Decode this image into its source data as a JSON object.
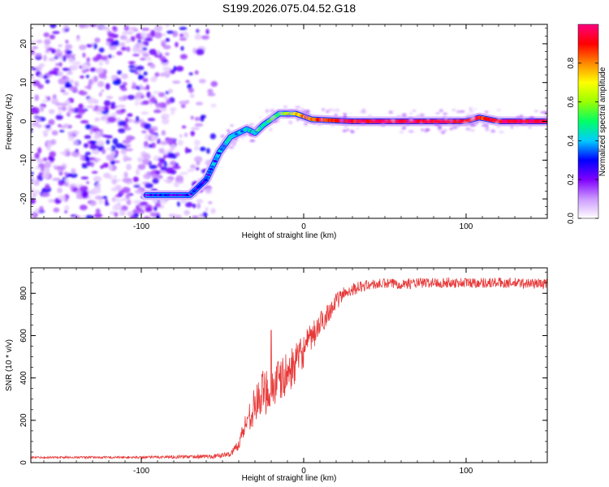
{
  "title": "S199.2026.075.04.52.G18",
  "chart_data": [
    {
      "type": "heatmap",
      "name": "spectrogram",
      "xlabel": "Height of straight line (km)",
      "ylabel": "Frequency (Hz)",
      "xlim": [
        -168,
        150
      ],
      "ylim": [
        -25,
        25
      ],
      "xticks": [
        -100,
        0,
        100
      ],
      "yticks": [
        -20,
        -10,
        0,
        10,
        20
      ],
      "colorbar": {
        "label": "Normalized spectral amplitude",
        "range": [
          0,
          1
        ],
        "ticks": [
          0.0,
          0.2,
          0.4,
          0.6,
          0.8
        ],
        "colors": [
          "#ffffff",
          "#cc99ff",
          "#8000ff",
          "#0000ff",
          "#00ccff",
          "#00ff66",
          "#99ff00",
          "#ffff00",
          "#ff8800",
          "#ff0000",
          "#ff0080"
        ]
      },
      "noise_region_x": [
        -168,
        -55
      ],
      "ridge": [
        {
          "x": -97,
          "y": -19,
          "a": 0.25
        },
        {
          "x": -70,
          "y": -19,
          "a": 0.25
        },
        {
          "x": -60,
          "y": -15,
          "a": 0.3
        },
        {
          "x": -52,
          "y": -8,
          "a": 0.35
        },
        {
          "x": -45,
          "y": -4,
          "a": 0.4
        },
        {
          "x": -35,
          "y": -2,
          "a": 0.4
        },
        {
          "x": -30,
          "y": -3,
          "a": 0.45
        },
        {
          "x": -25,
          "y": -1,
          "a": 0.4
        },
        {
          "x": -15,
          "y": 2,
          "a": 0.55
        },
        {
          "x": -5,
          "y": 2,
          "a": 0.7
        },
        {
          "x": 5,
          "y": 0.5,
          "a": 0.85
        },
        {
          "x": 30,
          "y": 0,
          "a": 0.95
        },
        {
          "x": 60,
          "y": 0,
          "a": 0.95
        },
        {
          "x": 90,
          "y": 0,
          "a": 0.95
        },
        {
          "x": 100,
          "y": 0,
          "a": 0.9
        },
        {
          "x": 108,
          "y": 1,
          "a": 0.9
        },
        {
          "x": 120,
          "y": 0,
          "a": 0.95
        },
        {
          "x": 150,
          "y": 0,
          "a": 0.95
        }
      ]
    },
    {
      "type": "line",
      "name": "snr",
      "xlabel": "Height of straight line (km)",
      "ylabel": "SNR (10 * v/v)",
      "xlim": [
        -168,
        150
      ],
      "ylim": [
        0,
        920
      ],
      "xticks": [
        -100,
        0,
        100
      ],
      "yticks": [
        0,
        200,
        400,
        600,
        800
      ],
      "color": "#e83a3a",
      "x": [
        -168,
        -150,
        -125,
        -100,
        -75,
        -55,
        -45,
        -40,
        -35,
        -30,
        -25,
        -20,
        -15,
        -10,
        -5,
        0,
        5,
        10,
        15,
        20,
        25,
        30,
        40,
        50,
        60,
        80,
        100,
        120,
        150
      ],
      "y": [
        25,
        25,
        25,
        25,
        28,
        30,
        40,
        90,
        200,
        270,
        330,
        360,
        380,
        420,
        470,
        530,
        590,
        650,
        710,
        760,
        800,
        820,
        840,
        845,
        845,
        850,
        850,
        850,
        845
      ],
      "noise_amplitude": [
        5,
        5,
        5,
        6,
        8,
        10,
        12,
        30,
        60,
        90,
        110,
        120,
        110,
        100,
        90,
        80,
        70,
        60,
        50,
        40,
        35,
        30,
        25,
        25,
        25,
        25,
        25,
        25,
        25
      ],
      "spike": {
        "x": -20,
        "y": 625
      }
    }
  ]
}
